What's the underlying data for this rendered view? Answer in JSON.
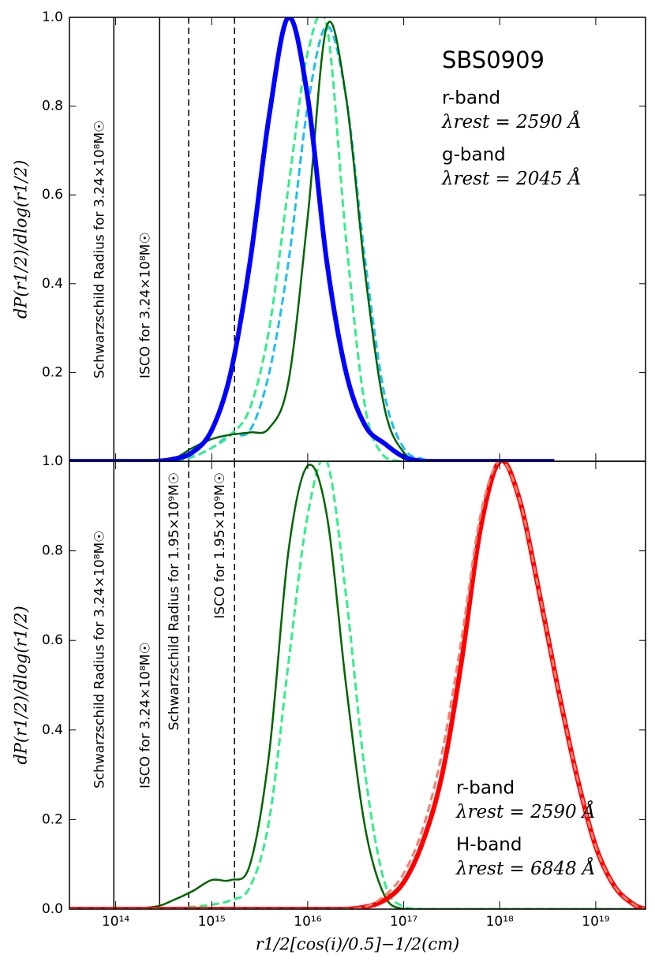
{
  "chart_data": [
    {
      "type": "line",
      "title": "SBS0909",
      "ylabel": "dP(r1/2)/dlog(r1/2)",
      "xscale": "log",
      "xlim": [
        33000000000000.0,
        3.3e+19
      ],
      "ylim": [
        0,
        1
      ],
      "yticks": [
        {
          "value": 0.2,
          "label": "0.2"
        },
        {
          "value": 0.4,
          "label": "0.4"
        },
        {
          "value": 0.6,
          "label": "0.6"
        },
        {
          "value": 0.8,
          "label": "0.8"
        },
        {
          "value": 1.0,
          "label": "1.0"
        }
      ],
      "x": [
        33000000000000.0,
        100000000000000.0,
        251000000000000.0,
        398000000000000.0,
        631000000000000.0,
        1000000000000000.0,
        1580000000000000.0,
        2510000000000000.0,
        3980000000000000.0,
        6310000000000000.0,
        1e+16,
        1.58e+16,
        2.51e+16,
        3.98e+16,
        6.31e+16,
        1e+17,
        1.58e+17,
        2.51e+17,
        3.7e+18
      ],
      "series": [
        {
          "color": "#1ebfef",
          "style": "dashed",
          "width": 3,
          "values": [
            0,
            0,
            0,
            0,
            0.01,
            0.03,
            0.06,
            0.07,
            0.2,
            0.45,
            0.8,
            0.98,
            0.82,
            0.45,
            0.15,
            0.03,
            0.005,
            0,
            null
          ]
        },
        {
          "color": "#33ee88",
          "style": "dashed",
          "width": 3,
          "values": [
            0,
            0,
            0,
            0,
            0.01,
            0.03,
            0.06,
            0.12,
            0.3,
            0.62,
            0.92,
            0.98,
            0.5,
            0.12,
            0.01,
            0,
            0,
            0,
            null
          ]
        },
        {
          "name": "r-band",
          "color": "#006400",
          "style": "solid",
          "width": 2.5,
          "values": [
            0,
            0,
            0,
            0.005,
            0.03,
            0.05,
            0.06,
            0.065,
            0.075,
            0.18,
            0.55,
            0.98,
            0.82,
            0.42,
            0.12,
            0.02,
            0,
            0,
            null
          ]
        },
        {
          "name": "g-band",
          "color": "#0000ff",
          "style": "solid",
          "width": 6,
          "values": [
            0,
            0,
            0,
            0.005,
            0.02,
            0.07,
            0.2,
            0.45,
            0.78,
            1.0,
            0.82,
            0.45,
            0.2,
            0.08,
            0.04,
            0.01,
            0,
            0,
            0
          ]
        }
      ],
      "legend": [
        {
          "text": "r-band",
          "subtext": "λrest = 2590 Å",
          "color": "#006400"
        },
        {
          "text": "g-band",
          "subtext": "λrest = 2045 Å",
          "color": "#0000ff"
        }
      ],
      "vlines": [
        {
          "x": 95700000000000.0,
          "style": "solid",
          "label": "Schwarzschild Radius for 3.24×10⁸M☉"
        },
        {
          "x": 287000000000000.0,
          "style": "solid",
          "label": "ISCO for 3.24×10⁸M☉"
        },
        {
          "x": 576000000000000.0,
          "style": "dashed"
        },
        {
          "x": 1730000000000000.0,
          "style": "dashed"
        }
      ]
    },
    {
      "type": "line",
      "ylabel": "dP(r1/2)/dlog(r1/2)",
      "xlabel": "r1/2[cos(i)/0.5]−1/2(cm)",
      "xscale": "log",
      "xlim": [
        33000000000000.0,
        3.3e+19
      ],
      "ylim": [
        0,
        1
      ],
      "xticks": [
        {
          "value": 100000000000000.0,
          "label": "10¹⁴"
        },
        {
          "value": 1000000000000000.0,
          "label": "10¹⁵"
        },
        {
          "value": 1e+16,
          "label": "10¹⁶"
        },
        {
          "value": 1e+17,
          "label": "10¹⁷"
        },
        {
          "value": 1e+18,
          "label": "10¹⁸"
        },
        {
          "value": 1e+19,
          "label": "10¹⁹"
        }
      ],
      "yticks": [
        {
          "value": 0.0,
          "label": "0.0"
        },
        {
          "value": 0.2,
          "label": "0.2"
        },
        {
          "value": 0.4,
          "label": "0.4"
        },
        {
          "value": 0.6,
          "label": "0.6"
        },
        {
          "value": 0.8,
          "label": "0.8"
        },
        {
          "value": 1.0,
          "label": "1.0"
        }
      ],
      "x": [
        33000000000000.0,
        100000000000000.0,
        251000000000000.0,
        398000000000000.0,
        631000000000000.0,
        1000000000000000.0,
        1580000000000000.0,
        2510000000000000.0,
        3980000000000000.0,
        6310000000000000.0,
        1e+16,
        1.58e+16,
        2.51e+16,
        3.98e+16,
        6.31e+16,
        1e+17,
        1.58e+17,
        2.51e+17,
        3.98e+17,
        6.31e+17,
        1e+18,
        1.58e+18,
        2.51e+18,
        3.98e+18,
        6.31e+18,
        1e+19,
        1.58e+19,
        2.51e+19,
        3.3e+19
      ],
      "series": [
        {
          "color": "#33ee88",
          "style": "dashed",
          "width": 3,
          "values": [
            0,
            0,
            0,
            0,
            0.005,
            0.01,
            0.02,
            0.05,
            0.2,
            0.55,
            0.88,
            1.0,
            0.7,
            0.3,
            0.06,
            0.005,
            0,
            0,
            0,
            0,
            0,
            0,
            0,
            0,
            0,
            0,
            0,
            0,
            0
          ]
        },
        {
          "name": "r-band",
          "color": "#006400",
          "style": "solid",
          "width": 2.5,
          "values": [
            0,
            0,
            0.005,
            0.02,
            0.04,
            0.065,
            0.065,
            0.1,
            0.35,
            0.8,
            0.99,
            0.88,
            0.5,
            0.18,
            0.03,
            0,
            0,
            0,
            0,
            0,
            0,
            0,
            0,
            0,
            0,
            0,
            0,
            0,
            0
          ]
        },
        {
          "name": "H-band",
          "color": "#ff0000",
          "style": "solid",
          "width": 6,
          "values": [
            0,
            0,
            0,
            0,
            0,
            0,
            0,
            0,
            0,
            0,
            0,
            0,
            0,
            0.005,
            0.02,
            0.06,
            0.15,
            0.3,
            0.55,
            0.85,
            1.0,
            0.92,
            0.72,
            0.5,
            0.3,
            0.14,
            0.05,
            0.01,
            0
          ]
        },
        {
          "color": "#f08070",
          "style": "dashed",
          "width": 3,
          "values": [
            0,
            0,
            0,
            0,
            0,
            0,
            0,
            0,
            0,
            0,
            0,
            0,
            0,
            0.005,
            0.03,
            0.08,
            0.18,
            0.35,
            0.6,
            0.88,
            1.0,
            0.92,
            0.72,
            0.5,
            0.3,
            0.14,
            0.05,
            0.01,
            0
          ]
        }
      ],
      "legend": [
        {
          "text": "r-band",
          "subtext": "λrest = 2590 Å",
          "color": "#006400"
        },
        {
          "text": "H-band",
          "subtext": "λrest = 6848 Å",
          "color": "#ff0000"
        }
      ],
      "vlines": [
        {
          "x": 95700000000000.0,
          "style": "solid",
          "label": "Schwarzschild Radius for 3.24×10⁸M☉"
        },
        {
          "x": 287000000000000.0,
          "style": "solid",
          "label": "ISCO for 3.24×10⁸M☉"
        },
        {
          "x": 576000000000000.0,
          "style": "dashed",
          "label": "Schwarzschild Radius for 1.95×10⁹M☉"
        },
        {
          "x": 1730000000000000.0,
          "style": "dashed",
          "label": "ISCO for 1.95×10⁹M☉"
        }
      ]
    }
  ]
}
